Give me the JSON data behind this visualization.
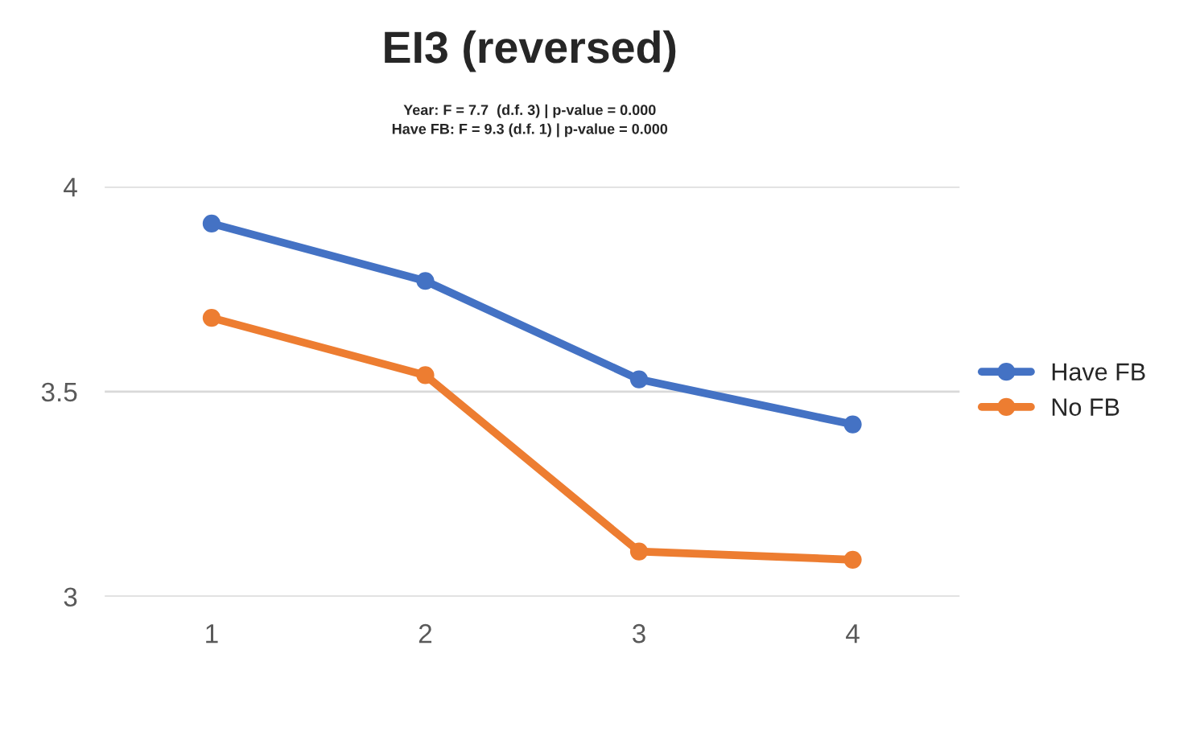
{
  "chart_data": {
    "type": "line",
    "title": "EI3 (reversed)",
    "subtitle": "Year: F = 7.7  (d.f. 3) | p-value = 0.000\nHave FB: F = 9.3 (d.f. 1) | p-value = 0.000",
    "categories": [
      "1",
      "2",
      "3",
      "4"
    ],
    "series": [
      {
        "name": "Have FB",
        "color": "#4472c4",
        "values": [
          3.91,
          3.77,
          3.53,
          3.42
        ]
      },
      {
        "name": "No FB",
        "color": "#ed7d31",
        "values": [
          3.68,
          3.54,
          3.11,
          3.09
        ]
      }
    ],
    "ylim": [
      3,
      4
    ],
    "yticks": [
      3,
      3.5,
      4
    ],
    "grid": "y",
    "legend": "right",
    "marker": "circle",
    "line_style": "solid"
  }
}
